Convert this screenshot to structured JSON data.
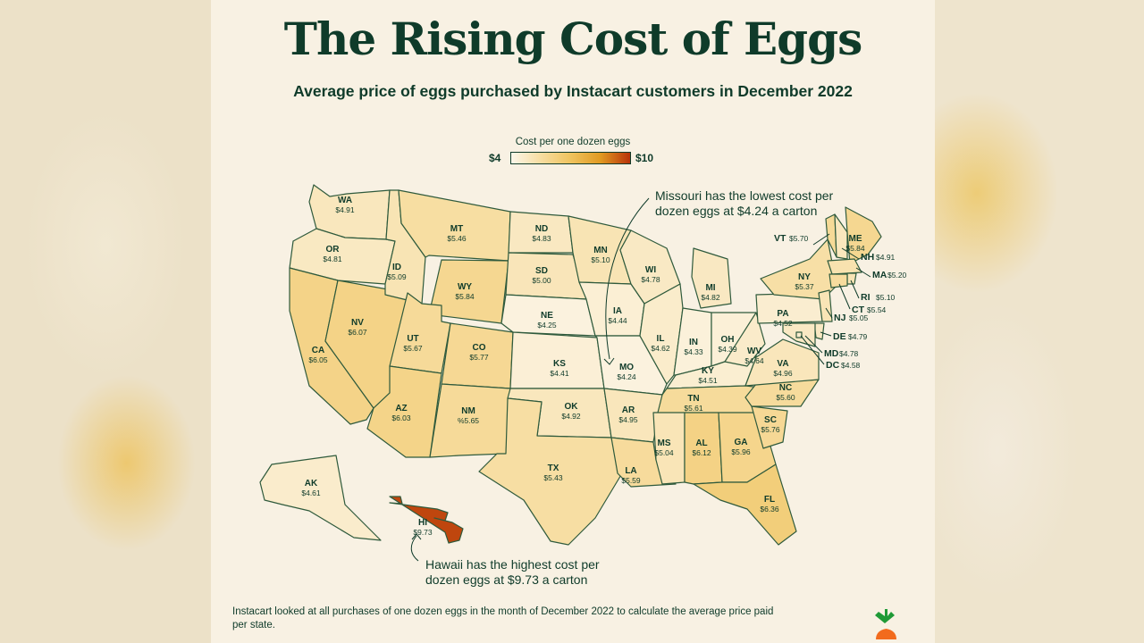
{
  "title": "The Rising Cost of Eggs",
  "subtitle": "Average price of eggs purchased by Instacart customers in December 2022",
  "legend": {
    "title": "Cost per one dozen eggs",
    "min_label": "$4",
    "max_label": "$10",
    "min_value": 4,
    "max_value": 10,
    "colors": [
      "#fcf6ea",
      "#f7dda0",
      "#efc35e",
      "#e19a22",
      "#b8330a"
    ]
  },
  "annotations": {
    "lowest": "Missouri has the lowest cost per dozen eggs at $4.24 a carton",
    "highest": "Hawaii has the highest cost per dozen eggs at $9.73 a carton"
  },
  "footnote": "Instacart looked at all purchases of one dozen eggs in the month of December 2022 to calculate the average price paid per state.",
  "colors": {
    "text": "#0f3b2a",
    "border": "#2f5a3c",
    "background": "#f8f1e3"
  },
  "states": [
    {
      "abbr": "WA",
      "price": 4.91,
      "label": "$4.91"
    },
    {
      "abbr": "OR",
      "price": 4.81,
      "label": "$4.81"
    },
    {
      "abbr": "CA",
      "price": 6.05,
      "label": "$6.05"
    },
    {
      "abbr": "NV",
      "price": 6.07,
      "label": "$6.07"
    },
    {
      "abbr": "ID",
      "price": 5.09,
      "label": "$5.09"
    },
    {
      "abbr": "MT",
      "price": 5.46,
      "label": "$5.46"
    },
    {
      "abbr": "WY",
      "price": 5.84,
      "label": "$5.84"
    },
    {
      "abbr": "UT",
      "price": 5.67,
      "label": "$5.67"
    },
    {
      "abbr": "AZ",
      "price": 6.03,
      "label": "$6.03"
    },
    {
      "abbr": "CO",
      "price": 5.77,
      "label": "$5.77"
    },
    {
      "abbr": "NM",
      "price": 5.65,
      "label": "%5.65"
    },
    {
      "abbr": "ND",
      "price": 4.83,
      "label": "$4.83"
    },
    {
      "abbr": "SD",
      "price": 5.0,
      "label": "$5.00"
    },
    {
      "abbr": "NE",
      "price": 4.25,
      "label": "$4.25"
    },
    {
      "abbr": "KS",
      "price": 4.41,
      "label": "$4.41"
    },
    {
      "abbr": "OK",
      "price": 4.92,
      "label": "$4.92"
    },
    {
      "abbr": "TX",
      "price": 5.43,
      "label": "$5.43"
    },
    {
      "abbr": "MN",
      "price": 5.1,
      "label": "$5.10"
    },
    {
      "abbr": "IA",
      "price": 4.44,
      "label": "$4.44"
    },
    {
      "abbr": "MO",
      "price": 4.24,
      "label": "$4.24"
    },
    {
      "abbr": "AR",
      "price": 4.95,
      "label": "$4.95"
    },
    {
      "abbr": "LA",
      "price": 5.59,
      "label": "$5.59"
    },
    {
      "abbr": "WI",
      "price": 4.78,
      "label": "$4.78"
    },
    {
      "abbr": "IL",
      "price": 4.62,
      "label": "$4.62"
    },
    {
      "abbr": "MI",
      "price": 4.82,
      "label": "$4.82"
    },
    {
      "abbr": "IN",
      "price": 4.33,
      "label": "$4.33"
    },
    {
      "abbr": "OH",
      "price": 4.39,
      "label": "$4.39"
    },
    {
      "abbr": "KY",
      "price": 4.51,
      "label": "$4.51"
    },
    {
      "abbr": "TN",
      "price": 5.61,
      "label": "$5.61"
    },
    {
      "abbr": "MS",
      "price": 5.04,
      "label": "$5.04"
    },
    {
      "abbr": "AL",
      "price": 6.12,
      "label": "$6.12"
    },
    {
      "abbr": "GA",
      "price": 5.96,
      "label": "$5.96"
    },
    {
      "abbr": "FL",
      "price": 6.36,
      "label": "$6.36"
    },
    {
      "abbr": "SC",
      "price": 5.76,
      "label": "$5.76"
    },
    {
      "abbr": "NC",
      "price": 5.6,
      "label": "$5.60"
    },
    {
      "abbr": "VA",
      "price": 4.96,
      "label": "$4.96"
    },
    {
      "abbr": "WV",
      "price": 4.64,
      "label": "$4.64"
    },
    {
      "abbr": "PA",
      "price": 4.52,
      "label": "$4.52"
    },
    {
      "abbr": "NY",
      "price": 5.37,
      "label": "$5.37"
    },
    {
      "abbr": "VT",
      "price": 5.7,
      "label": "$5.70"
    },
    {
      "abbr": "NH",
      "price": 4.91,
      "label": "$4.91"
    },
    {
      "abbr": "ME",
      "price": 5.84,
      "label": "$5.84"
    },
    {
      "abbr": "MA",
      "price": 5.2,
      "label": "$5.20"
    },
    {
      "abbr": "RI",
      "price": 5.1,
      "label": "$5.10"
    },
    {
      "abbr": "CT",
      "price": 5.54,
      "label": "$5.54"
    },
    {
      "abbr": "NJ",
      "price": 5.05,
      "label": "$5.05"
    },
    {
      "abbr": "DE",
      "price": 4.79,
      "label": "$4.79"
    },
    {
      "abbr": "MD",
      "price": 4.78,
      "label": "$4.78"
    },
    {
      "abbr": "DC",
      "price": 4.58,
      "label": "$4.58"
    },
    {
      "abbr": "AK",
      "price": 4.61,
      "label": "$4.61"
    },
    {
      "abbr": "HI",
      "price": 9.73,
      "label": "$9.73"
    }
  ]
}
